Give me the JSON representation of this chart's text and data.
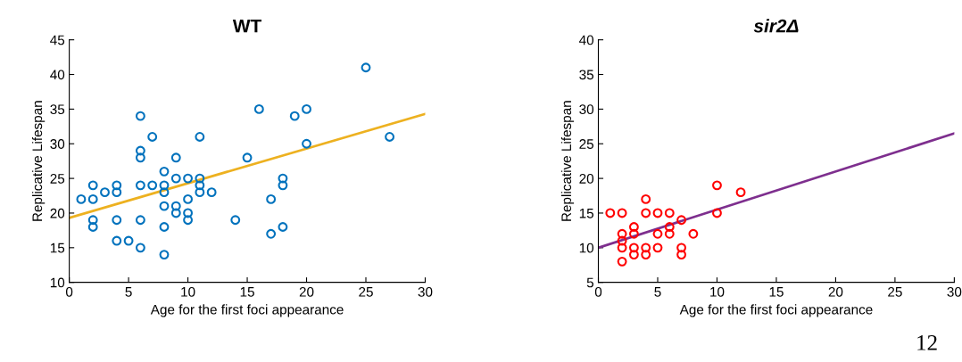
{
  "chart_data": [
    {
      "type": "scatter",
      "title": "WT",
      "xlabel": "Age for the first foci appearance",
      "ylabel": "Replicative Lifespan",
      "xlim": [
        0,
        30
      ],
      "xticks": [
        0,
        5,
        10,
        15,
        20,
        25,
        30
      ],
      "ylim": [
        10,
        45
      ],
      "yticks": [
        10,
        15,
        20,
        25,
        30,
        35,
        40,
        45
      ],
      "grid": false,
      "series": [
        {
          "color": "#0072bd",
          "marker": "circle",
          "x": [
            1,
            2,
            2,
            2,
            2,
            3,
            4,
            4,
            4,
            4,
            5,
            6,
            6,
            6,
            6,
            6,
            6,
            7,
            7,
            8,
            8,
            8,
            8,
            8,
            8,
            9,
            9,
            9,
            9,
            10,
            10,
            10,
            10,
            11,
            11,
            11,
            11,
            12,
            14,
            15,
            16,
            17,
            17,
            18,
            18,
            18,
            19,
            20,
            20,
            25,
            27
          ],
          "values": [
            22,
            24,
            22,
            19,
            18,
            23,
            24,
            23,
            19,
            16,
            16,
            34,
            29,
            28,
            24,
            19,
            15,
            31,
            24,
            26,
            24,
            23,
            21,
            18,
            14,
            28,
            25,
            21,
            20,
            25,
            22,
            20,
            19,
            31,
            25,
            24,
            23,
            23,
            19,
            28,
            35,
            22,
            17,
            25,
            24,
            18,
            34,
            35,
            30,
            41,
            31
          ]
        },
        {
          "type": "line",
          "marker": "none",
          "color": "#edb120",
          "x": [
            0,
            30
          ],
          "values": [
            19.3,
            34.3
          ]
        }
      ]
    },
    {
      "type": "scatter",
      "title": "sir2Δ",
      "xlabel": "Age for the first foci appearance",
      "ylabel": "Replicative Lifespan",
      "xlim": [
        0,
        30
      ],
      "xticks": [
        0,
        5,
        10,
        15,
        20,
        25,
        30
      ],
      "ylim": [
        5,
        40
      ],
      "yticks": [
        5,
        10,
        15,
        20,
        25,
        30,
        35,
        40
      ],
      "grid": false,
      "annotations": [
        "12"
      ],
      "series": [
        {
          "color": "#ff0000",
          "marker": "circle",
          "x": [
            1,
            2,
            2,
            2,
            2,
            2,
            3,
            3,
            3,
            3,
            4,
            4,
            4,
            4,
            5,
            5,
            5,
            6,
            6,
            6,
            7,
            7,
            7,
            8,
            10,
            10,
            12
          ],
          "values": [
            15,
            15,
            12,
            11,
            10,
            8,
            13,
            12,
            10,
            9,
            17,
            15,
            10,
            9,
            15,
            12,
            10,
            15,
            13,
            12,
            14,
            10,
            9,
            12,
            19,
            15,
            18
          ]
        },
        {
          "type": "line",
          "marker": "none",
          "color": "#7e2f8e",
          "x": [
            0,
            30
          ],
          "values": [
            10,
            26.5
          ]
        }
      ]
    }
  ]
}
